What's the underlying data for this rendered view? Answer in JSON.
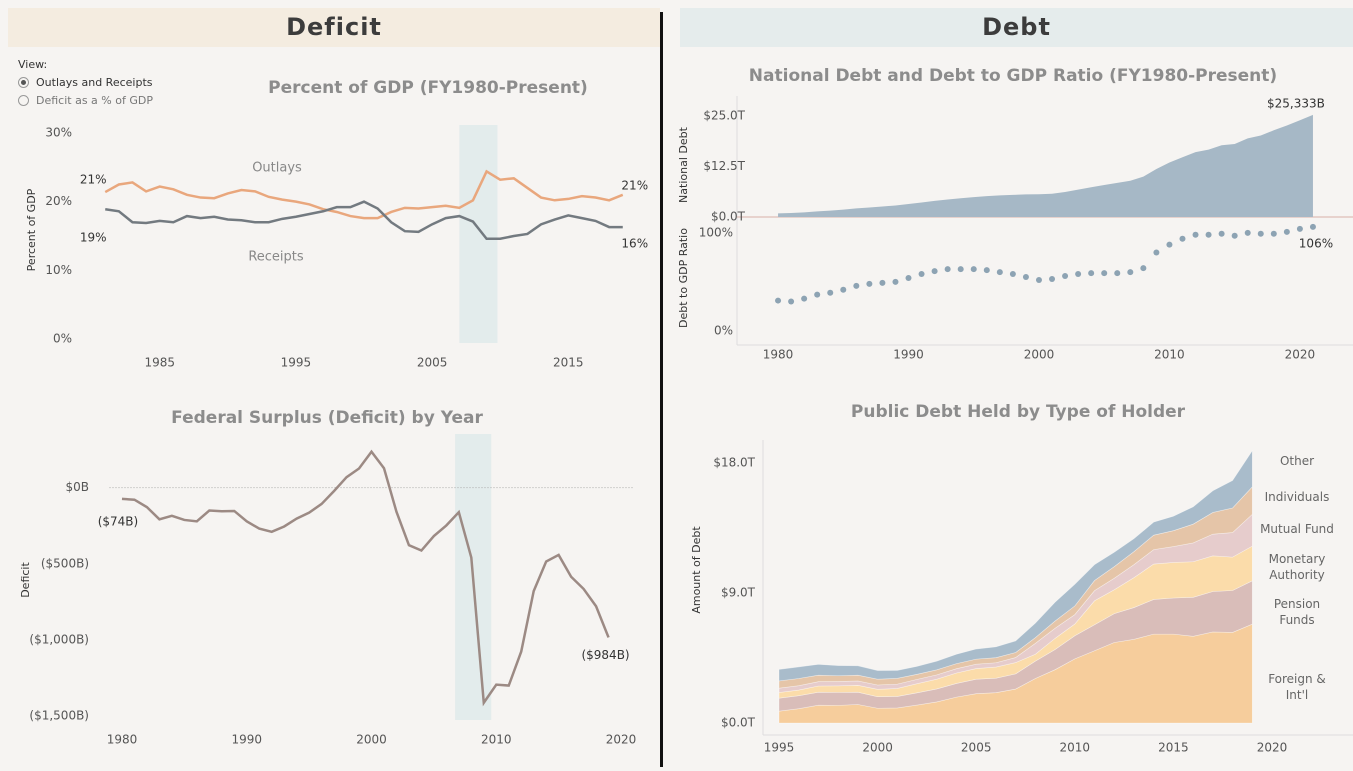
{
  "panels": {
    "deficit": "Deficit",
    "debt": "Debt"
  },
  "view": {
    "label": "View:",
    "options": [
      "Outlays and Receipts",
      "Deficit as a % of GDP"
    ],
    "selected": 0
  },
  "chart_data": [
    {
      "type": "line",
      "title": "Percent of GDP (FY1980-Present)",
      "y_label": "Percent of GDP",
      "x": [
        1981,
        1982,
        1983,
        1984,
        1985,
        1986,
        1987,
        1988,
        1989,
        1990,
        1991,
        1992,
        1993,
        1994,
        1995,
        1996,
        1997,
        1998,
        1999,
        2000,
        2001,
        2002,
        2003,
        2004,
        2005,
        2006,
        2007,
        2008,
        2009,
        2010,
        2011,
        2012,
        2013,
        2014,
        2015,
        2016,
        2017,
        2018,
        2019
      ],
      "series": [
        {
          "name": "Outlays",
          "color": "#e9a77d",
          "values": [
            21.4,
            22.5,
            22.8,
            21.5,
            22.2,
            21.8,
            21.0,
            20.6,
            20.5,
            21.2,
            21.7,
            21.5,
            20.7,
            20.3,
            20.0,
            19.6,
            18.9,
            18.5,
            17.9,
            17.6,
            17.6,
            18.5,
            19.1,
            19.0,
            19.2,
            19.4,
            19.1,
            20.2,
            24.4,
            23.2,
            23.4,
            22.0,
            20.6,
            20.2,
            20.4,
            20.8,
            20.6,
            20.2,
            21.0
          ],
          "value_labels": [
            "21%",
            null,
            null,
            null,
            null,
            null,
            null,
            null,
            null,
            null,
            null,
            null,
            null,
            null,
            null,
            null,
            null,
            null,
            null,
            null,
            null,
            null,
            null,
            null,
            null,
            null,
            null,
            null,
            null,
            null,
            null,
            null,
            null,
            null,
            null,
            null,
            null,
            null,
            "21%"
          ]
        },
        {
          "name": "Receipts",
          "color": "#737a80",
          "values": [
            18.9,
            18.6,
            17.0,
            16.9,
            17.2,
            17.0,
            17.9,
            17.6,
            17.8,
            17.4,
            17.3,
            17.0,
            17.0,
            17.5,
            17.8,
            18.2,
            18.6,
            19.2,
            19.2,
            20.0,
            19.0,
            17.0,
            15.7,
            15.6,
            16.7,
            17.6,
            17.9,
            17.1,
            14.6,
            14.6,
            15.0,
            15.3,
            16.7,
            17.4,
            18.0,
            17.6,
            17.2,
            16.3,
            16.3
          ],
          "value_labels": [
            "19%",
            null,
            null,
            null,
            null,
            null,
            null,
            null,
            null,
            null,
            null,
            null,
            null,
            null,
            null,
            null,
            null,
            null,
            null,
            null,
            null,
            null,
            null,
            null,
            null,
            null,
            null,
            null,
            null,
            null,
            null,
            null,
            null,
            null,
            null,
            null,
            null,
            null,
            "16%"
          ]
        }
      ],
      "xlim": [
        1979,
        2021
      ],
      "ylim": [
        0,
        30
      ],
      "xticks": [
        1985,
        1995,
        2005,
        2015
      ],
      "yticks": [
        {
          "value": 0,
          "label": "0%"
        },
        {
          "value": 10,
          "label": "10%"
        },
        {
          "value": 20,
          "label": "20%"
        },
        {
          "value": 30,
          "label": "30%"
        }
      ],
      "highlight_x": [
        2007,
        2009.8
      ]
    },
    {
      "type": "line",
      "title": "Federal Surplus (Deficit) by Year",
      "y_label": "Deficit",
      "x": [
        1980,
        1981,
        1982,
        1983,
        1984,
        1985,
        1986,
        1987,
        1988,
        1989,
        1990,
        1991,
        1992,
        1993,
        1994,
        1995,
        1996,
        1997,
        1998,
        1999,
        2000,
        2001,
        2002,
        2003,
        2004,
        2005,
        2006,
        2007,
        2008,
        2009,
        2010,
        2011,
        2012,
        2013,
        2014,
        2015,
        2016,
        2017,
        2018,
        2019
      ],
      "values": [
        -74,
        -79,
        -128,
        -208,
        -185,
        -212,
        -221,
        -150,
        -155,
        -153,
        -221,
        -269,
        -290,
        -255,
        -203,
        -164,
        -107,
        -22,
        69,
        126,
        236,
        128,
        -158,
        -378,
        -413,
        -318,
        -248,
        -161,
        -459,
        -1413,
        -1294,
        -1300,
        -1077,
        -680,
        -485,
        -442,
        -585,
        -665,
        -779,
        -984
      ],
      "value_labels": [
        "($74B)",
        null,
        null,
        null,
        null,
        null,
        null,
        null,
        null,
        null,
        null,
        null,
        null,
        null,
        null,
        null,
        null,
        null,
        null,
        null,
        null,
        null,
        null,
        null,
        null,
        null,
        null,
        null,
        null,
        null,
        null,
        null,
        null,
        null,
        null,
        null,
        null,
        null,
        null,
        "($984B)"
      ],
      "color": "#9c8a84",
      "xlim": [
        1979,
        2021
      ],
      "ylim": [
        -1500,
        300
      ],
      "xticks": [
        1980,
        1990,
        2000,
        2010,
        2020
      ],
      "yticks": [
        {
          "value": 0,
          "label": "$0B"
        },
        {
          "value": -500,
          "label": "($500B)"
        },
        {
          "value": -1000,
          "label": "($1,000B)"
        },
        {
          "value": -1500,
          "label": "($1,500B)"
        }
      ],
      "zero_line": true,
      "highlight_x": [
        2006.7,
        2009.6
      ]
    },
    {
      "type": "area",
      "title": "National Debt and Debt to GDP Ratio (FY1980-Present)",
      "y_label": "National Debt",
      "x": [
        1980,
        1981,
        1982,
        1983,
        1984,
        1985,
        1986,
        1987,
        1988,
        1989,
        1990,
        1991,
        1992,
        1993,
        1994,
        1995,
        1996,
        1997,
        1998,
        1999,
        2000,
        2001,
        2002,
        2003,
        2004,
        2005,
        2006,
        2007,
        2008,
        2009,
        2010,
        2011,
        2012,
        2013,
        2014,
        2015,
        2016,
        2017,
        2018,
        2019,
        2020,
        2021
      ],
      "values": [
        0.91,
        1.0,
        1.14,
        1.38,
        1.57,
        1.82,
        2.13,
        2.35,
        2.6,
        2.86,
        3.21,
        3.6,
        4.0,
        4.35,
        4.64,
        4.92,
        5.18,
        5.37,
        5.48,
        5.6,
        5.63,
        5.77,
        6.2,
        6.78,
        7.38,
        7.93,
        8.45,
        9.0,
        10.0,
        11.9,
        13.5,
        14.8,
        16.1,
        16.7,
        17.8,
        18.1,
        19.5,
        20.2,
        21.5,
        22.7,
        24.0,
        25.333
      ],
      "value_labels": [
        null,
        null,
        null,
        null,
        null,
        null,
        null,
        null,
        null,
        null,
        null,
        null,
        null,
        null,
        null,
        null,
        null,
        null,
        null,
        null,
        null,
        null,
        null,
        null,
        null,
        null,
        null,
        null,
        null,
        null,
        null,
        null,
        null,
        null,
        null,
        null,
        null,
        null,
        null,
        null,
        null,
        "$25,333B"
      ],
      "color": "#a6b8c6",
      "xlim": [
        1979,
        2022
      ],
      "ylim": [
        0,
        30
      ],
      "yticks": [
        {
          "value": 0,
          "label": "$0.0T"
        },
        {
          "value": 12.5,
          "label": "$12.5T"
        },
        {
          "value": 25,
          "label": "$25.0T"
        }
      ]
    },
    {
      "type": "scatter",
      "y_label": "Debt to GDP Ratio",
      "x": [
        1980,
        1981,
        1982,
        1983,
        1984,
        1985,
        1986,
        1987,
        1988,
        1989,
        1990,
        1991,
        1992,
        1993,
        1994,
        1995,
        1996,
        1997,
        1998,
        1999,
        2000,
        2001,
        2002,
        2003,
        2004,
        2005,
        2006,
        2007,
        2008,
        2009,
        2010,
        2011,
        2012,
        2013,
        2014,
        2015,
        2016,
        2017,
        2018,
        2019,
        2020,
        2021
      ],
      "values": [
        31,
        30,
        33,
        37,
        39,
        42,
        46,
        48,
        49,
        50,
        54,
        58,
        61,
        63,
        63,
        63,
        62,
        60,
        58,
        55,
        52,
        53,
        56,
        58,
        59,
        59,
        59,
        60,
        64,
        80,
        88,
        94,
        98,
        98,
        99,
        97,
        100,
        99,
        99,
        101,
        104,
        106
      ],
      "value_labels": [
        null,
        null,
        null,
        null,
        null,
        null,
        null,
        null,
        null,
        null,
        null,
        null,
        null,
        null,
        null,
        null,
        null,
        null,
        null,
        null,
        null,
        null,
        null,
        null,
        null,
        null,
        null,
        null,
        null,
        null,
        null,
        null,
        null,
        null,
        null,
        null,
        null,
        null,
        null,
        null,
        null,
        "106%"
      ],
      "color": "#8da3b3",
      "xlim": [
        1979,
        2022
      ],
      "ylim": [
        0,
        110
      ],
      "xticks": [
        1980,
        1990,
        2000,
        2010,
        2020
      ],
      "yticks": [
        {
          "value": 0,
          "label": "0%"
        },
        {
          "value": 100,
          "label": "100%"
        }
      ]
    },
    {
      "type": "stacked_area",
      "title": "Public Debt Held by Type of Holder",
      "y_label": "Amount of Debt",
      "x": [
        1995,
        1996,
        1997,
        1998,
        1999,
        2000,
        2001,
        2002,
        2003,
        2004,
        2005,
        2006,
        2007,
        2008,
        2009,
        2010,
        2011,
        2012,
        2013,
        2014,
        2015,
        2016,
        2017,
        2018,
        2019
      ],
      "series": [
        {
          "name": "Foreign & Int'l",
          "color": "#f6cd9c",
          "values": [
            0.82,
            0.99,
            1.23,
            1.22,
            1.28,
            1.02,
            1.04,
            1.24,
            1.46,
            1.79,
            2.03,
            2.1,
            2.35,
            3.08,
            3.69,
            4.44,
            5.0,
            5.57,
            5.79,
            6.15,
            6.15,
            6.0,
            6.3,
            6.27,
            6.84
          ]
        },
        {
          "name": "Pension Funds",
          "color": "#d9bdb9",
          "values": [
            0.9,
            0.9,
            0.9,
            0.9,
            0.85,
            0.8,
            0.8,
            0.85,
            0.9,
            0.95,
            1.0,
            1.0,
            1.05,
            1.2,
            1.4,
            1.6,
            1.8,
            2.0,
            2.2,
            2.4,
            2.5,
            2.7,
            2.8,
            2.9,
            3.0
          ]
        },
        {
          "name": "Monetary Authority",
          "color": "#fbdcaa",
          "values": [
            0.39,
            0.39,
            0.43,
            0.45,
            0.48,
            0.51,
            0.55,
            0.63,
            0.67,
            0.72,
            0.74,
            0.77,
            0.78,
            0.48,
            0.77,
            0.81,
            1.66,
            1.65,
            2.07,
            2.45,
            2.46,
            2.46,
            2.47,
            2.31,
            2.4
          ]
        },
        {
          "name": "Mutual Fund",
          "color": "#e6cccc",
          "values": [
            0.3,
            0.3,
            0.3,
            0.3,
            0.3,
            0.3,
            0.3,
            0.3,
            0.3,
            0.3,
            0.3,
            0.3,
            0.35,
            0.75,
            0.7,
            0.65,
            0.7,
            0.8,
            0.9,
            1.0,
            1.1,
            1.3,
            1.5,
            1.7,
            2.2
          ]
        },
        {
          "name": "Individuals",
          "color": "#e5c5a8",
          "values": [
            0.5,
            0.5,
            0.45,
            0.4,
            0.4,
            0.4,
            0.4,
            0.35,
            0.35,
            0.35,
            0.35,
            0.35,
            0.35,
            0.4,
            0.5,
            0.6,
            0.7,
            0.8,
            0.9,
            1.0,
            1.1,
            1.3,
            1.5,
            1.7,
            1.9
          ]
        },
        {
          "name": "Other",
          "color": "#a9bccb",
          "values": [
            0.8,
            0.8,
            0.75,
            0.7,
            0.65,
            0.6,
            0.55,
            0.55,
            0.6,
            0.65,
            0.7,
            0.75,
            0.8,
            1.0,
            1.3,
            1.5,
            1.1,
            1.0,
            0.9,
            0.9,
            1.0,
            1.2,
            1.5,
            1.9,
            2.5
          ]
        }
      ],
      "xlim": [
        1995,
        2020
      ],
      "ylim": [
        0,
        20
      ],
      "xticks": [
        1995,
        2000,
        2005,
        2010,
        2015,
        2020
      ],
      "yticks": [
        {
          "value": 0,
          "label": "$0.0T"
        },
        {
          "value": 9,
          "label": "$9.0T"
        },
        {
          "value": 18,
          "label": "$18.0T"
        }
      ]
    }
  ]
}
